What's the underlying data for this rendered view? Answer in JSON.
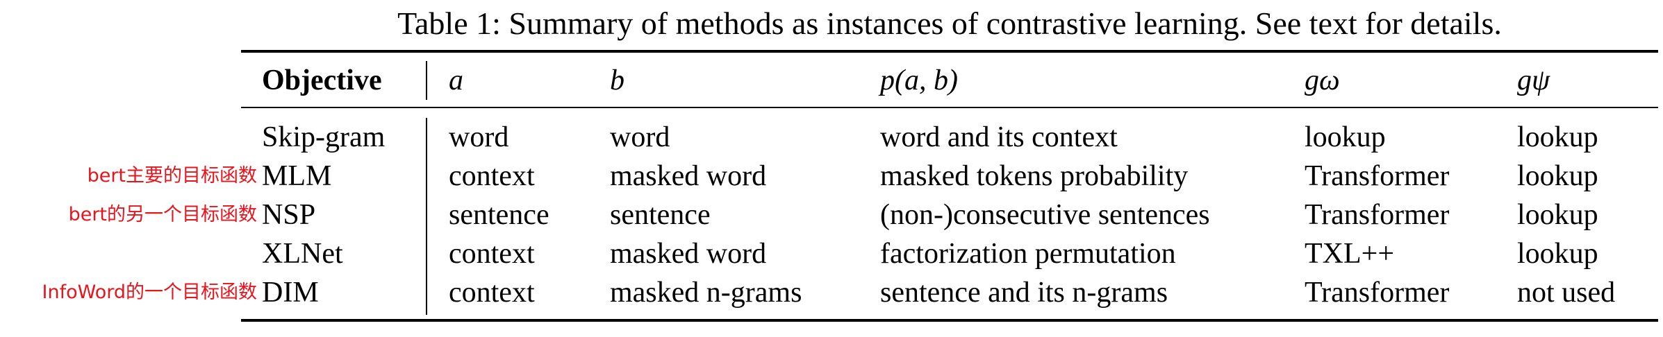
{
  "caption": "Table 1: Summary of methods as instances of contrastive learning. See text for details.",
  "header": {
    "objective": "Objective",
    "a": "a",
    "b": "b",
    "p": "p(a, b)",
    "g_omega": "gω",
    "g_psi": "gψ"
  },
  "rows": [
    {
      "note": "",
      "objective": "Skip-gram",
      "a": "word",
      "b": "word",
      "p": "word and its context",
      "g_omega": "lookup",
      "g_psi": "lookup"
    },
    {
      "note": "bert主要的目标函数",
      "objective": "MLM",
      "a": "context",
      "b": "masked word",
      "p": "masked tokens probability",
      "g_omega": "Transformer",
      "g_psi": "lookup"
    },
    {
      "note": "bert的另一个目标函数",
      "objective": "NSP",
      "a": "sentence",
      "b": "sentence",
      "p": "(non-)consecutive sentences",
      "g_omega": "Transformer",
      "g_psi": "lookup"
    },
    {
      "note": "",
      "objective": "XLNet",
      "a": "context",
      "b": "masked word",
      "p": "factorization permutation",
      "g_omega": "TXL++",
      "g_psi": "lookup"
    },
    {
      "note": "InfoWord的一个目标函数",
      "objective": "DIM",
      "a": "context",
      "b": "masked n-grams",
      "p": "sentence and its n-grams",
      "g_omega": "Transformer",
      "g_psi": "not used"
    }
  ],
  "colors": {
    "annotation": "#e8141c",
    "text": "#000000"
  }
}
